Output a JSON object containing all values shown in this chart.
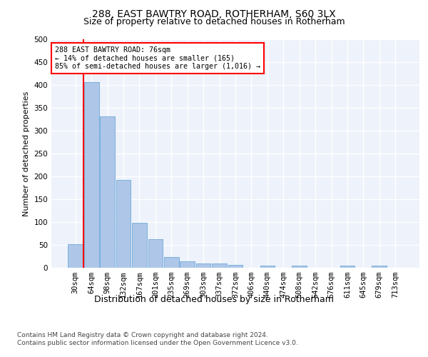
{
  "title": "288, EAST BAWTRY ROAD, ROTHERHAM, S60 3LX",
  "subtitle": "Size of property relative to detached houses in Rotherham",
  "xlabel": "Distribution of detached houses by size in Rotherham",
  "ylabel": "Number of detached properties",
  "bar_labels": [
    "30sqm",
    "64sqm",
    "98sqm",
    "132sqm",
    "167sqm",
    "201sqm",
    "235sqm",
    "269sqm",
    "303sqm",
    "337sqm",
    "372sqm",
    "406sqm",
    "440sqm",
    "474sqm",
    "508sqm",
    "542sqm",
    "576sqm",
    "611sqm",
    "645sqm",
    "679sqm",
    "713sqm"
  ],
  "bar_values": [
    52,
    407,
    332,
    192,
    98,
    63,
    24,
    14,
    10,
    10,
    6,
    0,
    5,
    0,
    4,
    0,
    0,
    4,
    0,
    4,
    0
  ],
  "bar_color": "#aec6e8",
  "bar_edgecolor": "#5a9fd4",
  "marker_label": "288 EAST BAWTRY ROAD: 76sqm\n← 14% of detached houses are smaller (165)\n85% of semi-detached houses are larger (1,016) →",
  "marker_color": "red",
  "ylim": [
    0,
    500
  ],
  "yticks": [
    0,
    50,
    100,
    150,
    200,
    250,
    300,
    350,
    400,
    450,
    500
  ],
  "background_color": "#eef2fb",
  "footer_line1": "Contains HM Land Registry data © Crown copyright and database right 2024.",
  "footer_line2": "Contains public sector information licensed under the Open Government Licence v3.0.",
  "title_fontsize": 10,
  "subtitle_fontsize": 9,
  "xlabel_fontsize": 9,
  "ylabel_fontsize": 8,
  "tick_fontsize": 7.5,
  "footer_fontsize": 6.5
}
